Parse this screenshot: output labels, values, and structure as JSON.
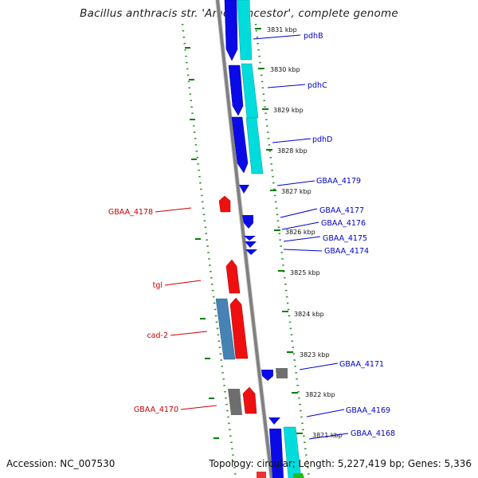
{
  "title": "Bacillus anthracis str. 'Ames Ancestor', complete genome",
  "footer": {
    "accession": "Accession: NC_007530",
    "summary": "Topology: circular; Length: 5,227,419 bp; Genes: 5,336"
  },
  "ticks": [
    "3831 kbp",
    "3830 kbp",
    "3829 kbp",
    "3828 kbp",
    "3827 kbp",
    "3826 kbp",
    "3825 kbp",
    "3824 kbp",
    "3823 kbp",
    "3822 kbp",
    "3821 kbp"
  ],
  "genes_right": [
    "pdhB",
    "pdhC",
    "pdhD",
    "GBAA_4179",
    "GBAA_4177",
    "GBAA_4176",
    "GBAA_4175",
    "GBAA_4174",
    "GBAA_4171",
    "GBAA_4169",
    "GBAA_4168"
  ],
  "genes_left": [
    "GBAA_4178",
    "tgl",
    "cad-2",
    "GBAA_4170"
  ],
  "colors": {
    "forward": "#0000ee",
    "forward_pair": "#00dddd",
    "reverse": "#ee0000",
    "reverse_pair": "#4682b4",
    "other": "#707070",
    "backbone": "#808080",
    "tick": "#008000",
    "label_right": "#0000cc",
    "label_left": "#cc0000"
  }
}
